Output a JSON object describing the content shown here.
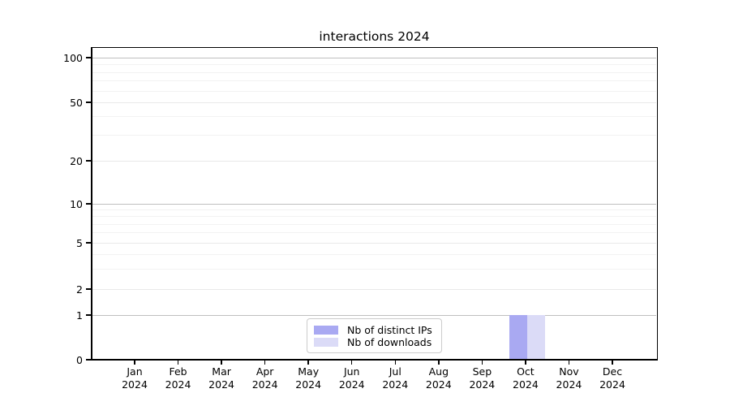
{
  "title": "interactions 2024",
  "y_axis": {
    "tick_labels": [
      "100",
      "50",
      "20",
      "10",
      "5",
      "2",
      "1",
      "0"
    ]
  },
  "x_axis": {
    "months": [
      "Jan",
      "Feb",
      "Mar",
      "Apr",
      "May",
      "Jun",
      "Jul",
      "Aug",
      "Sep",
      "Oct",
      "Nov",
      "Dec"
    ],
    "year": "2024"
  },
  "legend": {
    "items": [
      {
        "label": "Nb of distinct IPs",
        "color": "#a9a9f2"
      },
      {
        "label": "Nb of downloads",
        "color": "#dbdbf7"
      }
    ]
  },
  "chart_data": {
    "type": "bar",
    "title": "interactions 2024",
    "categories": [
      "Jan 2024",
      "Feb 2024",
      "Mar 2024",
      "Apr 2024",
      "May 2024",
      "Jun 2024",
      "Jul 2024",
      "Aug 2024",
      "Sep 2024",
      "Oct 2024",
      "Nov 2024",
      "Dec 2024"
    ],
    "series": [
      {
        "name": "Nb of distinct IPs",
        "color": "#a9a9f2",
        "values": [
          0,
          0,
          0,
          0,
          0,
          0,
          0,
          0,
          0,
          1,
          0,
          0
        ]
      },
      {
        "name": "Nb of downloads",
        "color": "#dbdbf7",
        "values": [
          0,
          0,
          0,
          0,
          0,
          0,
          0,
          0,
          0,
          1,
          0,
          0
        ]
      }
    ],
    "xlabel": "",
    "ylabel": "",
    "yscale": "log-like (0,1,2,5,10,20,50,100 ticks)",
    "y_ticks": [
      0,
      1,
      2,
      5,
      10,
      20,
      50,
      100
    ],
    "ylim": [
      0,
      120
    ],
    "grid": true,
    "legend_position": "lower center"
  }
}
